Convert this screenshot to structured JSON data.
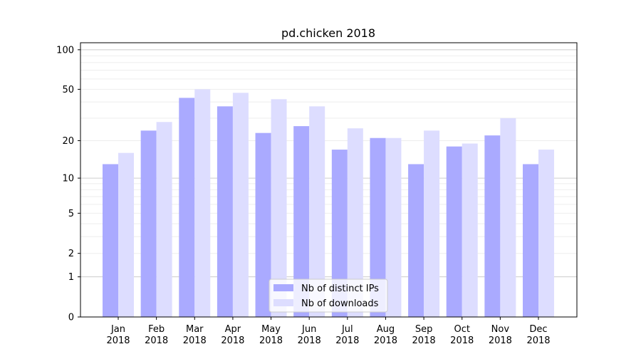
{
  "chart_data": {
    "type": "bar",
    "title": "pd.chicken 2018",
    "xlabel": "",
    "ylabel": "",
    "yscale": "log(y+1)",
    "ylim": [
      0,
      113
    ],
    "yticks": [
      0,
      1,
      2,
      5,
      10,
      20,
      50,
      100
    ],
    "grid": true,
    "legend_position": "lower center",
    "categories": [
      "Jan\n2018",
      "Feb\n2018",
      "Mar\n2018",
      "Apr\n2018",
      "May\n2018",
      "Jun\n2018",
      "Jul\n2018",
      "Aug\n2018",
      "Sep\n2018",
      "Oct\n2018",
      "Nov\n2018",
      "Dec\n2018"
    ],
    "series": [
      {
        "name": "Nb of distinct IPs",
        "color": "#aaaaff",
        "values": [
          13,
          24,
          43,
          37,
          23,
          26,
          17,
          21,
          13,
          18,
          22,
          13
        ]
      },
      {
        "name": "Nb of downloads",
        "color": "#ddddff",
        "values": [
          16,
          28,
          50,
          47,
          42,
          37,
          25,
          21,
          24,
          19,
          30,
          17
        ]
      }
    ]
  }
}
